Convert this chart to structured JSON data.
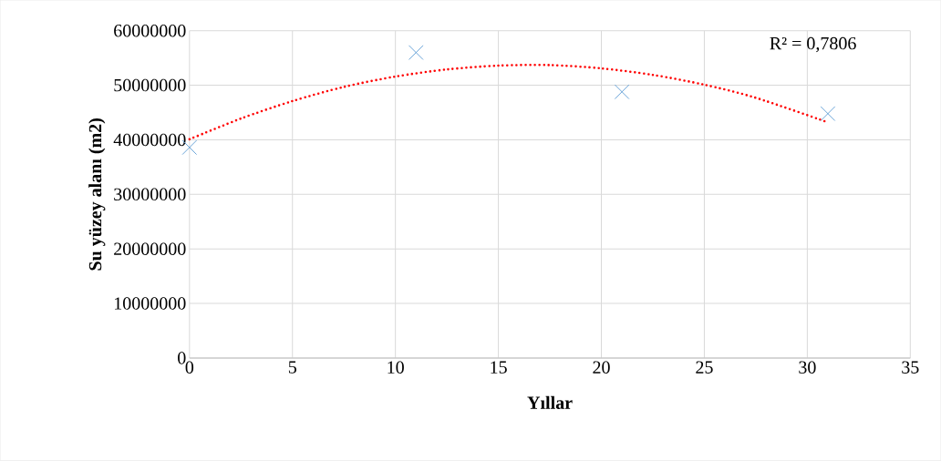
{
  "chart_data": {
    "type": "scatter",
    "xlabel": "Yıllar",
    "ylabel": "Su yüzey alanı (m2)",
    "series": [
      {
        "color": "#5b9bd5",
        "marker": "cross",
        "x": [
          0,
          11,
          21,
          31
        ],
        "values": [
          38600000,
          56000000,
          48800000,
          44800000
        ]
      },
      {
        "type": "line",
        "color": "#ff0000",
        "line_style": "dotted",
        "marker": "none",
        "x": [
          0,
          2.5,
          5,
          7.5,
          10,
          12.5,
          15,
          17.5,
          20,
          22.5,
          25,
          27.5,
          31
        ],
        "values": [
          40100000,
          43900000,
          47100000,
          49700000,
          51600000,
          52900000,
          53600000,
          53700000,
          53100000,
          51900000,
          50100000,
          47700000,
          43200000
        ]
      }
    ],
    "annotations": [
      "R² = 0,7806"
    ],
    "xlim": [
      0,
      35
    ],
    "xticks": [
      0,
      5,
      10,
      15,
      20,
      25,
      30,
      35
    ],
    "ylim": [
      0,
      60000000
    ],
    "yticks": [
      0,
      10000000,
      20000000,
      30000000,
      40000000,
      50000000,
      60000000
    ],
    "grid": true
  }
}
